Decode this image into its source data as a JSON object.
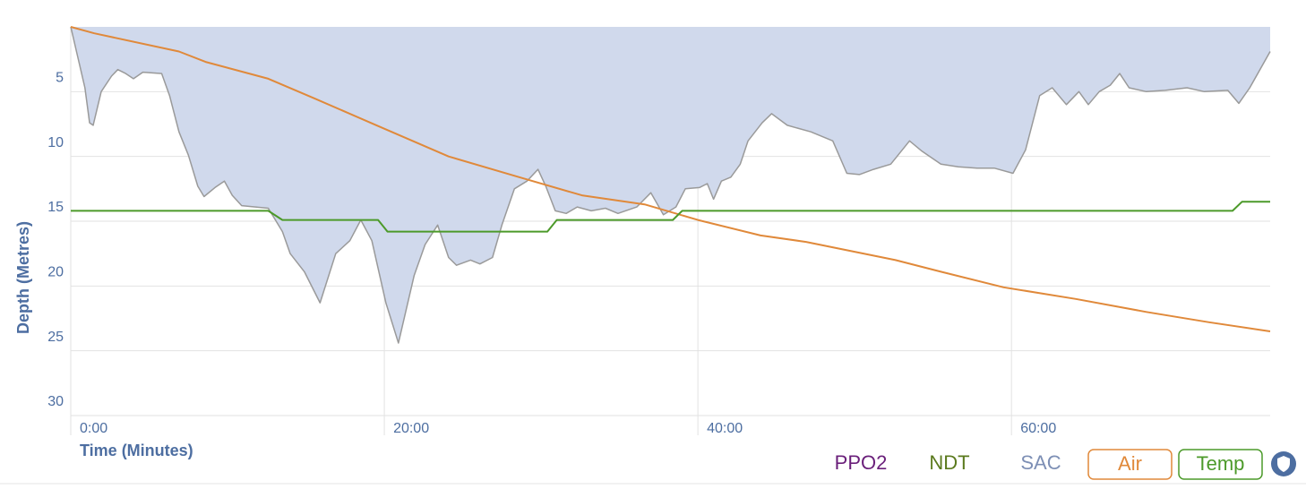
{
  "chart_data": {
    "type": "line",
    "ylabel": "Depth (Metres)",
    "xlabel": "Time (Minutes)",
    "xlim": [
      0,
      76.5
    ],
    "xticks": [
      {
        "value": 0,
        "label": "0:00"
      },
      {
        "value": 20,
        "label": "20:00"
      },
      {
        "value": 40,
        "label": "40:00"
      },
      {
        "value": 60,
        "label": "60:00"
      }
    ],
    "ylim": [
      0,
      30
    ],
    "yticks": [
      5,
      10,
      15,
      20,
      25,
      30
    ],
    "y_inverted": true,
    "grid": true,
    "toggles": [
      {
        "label": "PPO2",
        "color": "#6a1f7a"
      },
      {
        "label": "NDT",
        "color": "#5b7a1e"
      },
      {
        "label": "SAC",
        "color": "#7d8fb5"
      }
    ],
    "series": [
      {
        "color": "#9a9a9a",
        "fill": "#d0d9ec",
        "x": [
          0,
          0.9,
          1.2,
          1.43,
          1.94,
          2.6,
          3.0,
          3.5,
          4.0,
          4.6,
          5.8,
          6.3,
          6.9,
          7.5,
          8.1,
          8.5,
          9.2,
          9.8,
          10.3,
          10.9,
          12.6,
          13.5,
          14.0,
          14.9,
          15.9,
          16.9,
          17.8,
          18.5,
          19.2,
          20.1,
          20.9,
          21.9,
          22.6,
          23.4,
          24.1,
          24.6,
          25.5,
          26.1,
          26.9,
          27.5,
          28.3,
          29.1,
          29.8,
          30.3,
          30.9,
          31.6,
          32.3,
          33.2,
          34.1,
          34.9,
          36.1,
          37.0,
          37.8,
          38.6,
          39.2,
          40.1,
          40.6,
          41.0,
          41.5,
          42.1,
          42.7,
          43.2,
          44.1,
          44.7,
          45.7,
          47.2,
          48.6,
          49.5,
          50.3,
          51.2,
          52.3,
          53.5,
          54.3,
          55.5,
          56.6,
          57.8,
          58.9,
          60.1,
          60.9,
          61.8,
          62.6,
          63.5,
          64.3,
          64.9,
          65.6,
          66.3,
          66.9,
          67.5,
          68.6,
          69.8,
          71.2,
          72.3,
          73.8,
          74.5,
          75.2,
          76.5
        ],
        "values": [
          0,
          4.7,
          7.4,
          7.6,
          5.0,
          3.8,
          3.3,
          3.6,
          4.0,
          3.5,
          3.6,
          5.3,
          8.1,
          9.9,
          12.3,
          13.1,
          12.4,
          11.9,
          13.0,
          13.8,
          14.0,
          15.8,
          17.5,
          18.9,
          21.3,
          17.5,
          16.5,
          14.9,
          16.5,
          21.3,
          24.4,
          19.2,
          16.8,
          15.3,
          17.8,
          18.4,
          18.0,
          18.3,
          17.8,
          15.3,
          12.5,
          11.9,
          11.0,
          12.3,
          14.2,
          14.4,
          13.9,
          14.2,
          14.0,
          14.4,
          13.9,
          12.8,
          14.5,
          13.9,
          12.5,
          12.4,
          12.1,
          13.3,
          11.9,
          11.6,
          10.6,
          8.8,
          7.4,
          6.7,
          7.6,
          8.1,
          8.8,
          11.3,
          11.4,
          11.0,
          10.6,
          8.8,
          9.6,
          10.6,
          10.8,
          10.9,
          10.9,
          11.3,
          9.5,
          5.3,
          4.7,
          6.0,
          5.0,
          6.0,
          5.0,
          4.5,
          3.6,
          4.7,
          5.0,
          4.9,
          4.7,
          5.0,
          4.9,
          5.9,
          4.7,
          1.9
        ]
      },
      {
        "name": "Air",
        "color": "#e0893a",
        "x": [
          0,
          1.5,
          6.9,
          8.6,
          12.6,
          15.5,
          19.5,
          24.1,
          28.6,
          32.6,
          36.6,
          40,
          44,
          46.9,
          52.6,
          55.5,
          59.5,
          64.1,
          68.6,
          72.6,
          76.5
        ],
        "values": [
          0,
          0.5,
          1.9,
          2.7,
          4.0,
          5.5,
          7.6,
          10.0,
          11.6,
          13.0,
          13.7,
          14.9,
          16.1,
          16.6,
          18.0,
          18.9,
          20.1,
          21.0,
          22.0,
          22.8,
          23.5
        ]
      },
      {
        "name": "Temp",
        "color": "#4c9a2a",
        "x": [
          0,
          12.6,
          13.5,
          19.6,
          20.2,
          30.4,
          31.0,
          38.4,
          39.0,
          74.1,
          74.7,
          76.5
        ],
        "values": [
          14.2,
          14.2,
          14.9,
          14.9,
          15.8,
          15.8,
          14.9,
          14.9,
          14.2,
          14.2,
          13.5,
          13.5
        ]
      }
    ]
  }
}
